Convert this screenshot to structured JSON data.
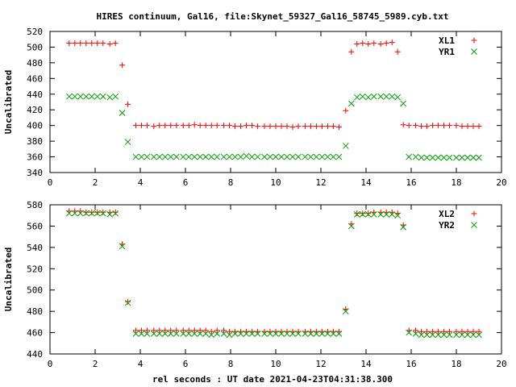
{
  "title": "HIRES continuum, Gal16, file:Skynet_59327_Gal16_58745_5989.cyb.txt",
  "xlabel": "rel seconds : UT date 2021-04-23T04:31:38.300",
  "colors": {
    "red": "#ff0000",
    "green": "#00a000"
  },
  "chart_data": [
    {
      "type": "scatter",
      "ylabel": "Uncalibrated",
      "xlim": [
        0,
        20
      ],
      "ylim": [
        340,
        520
      ],
      "xticks": [
        0,
        2,
        4,
        6,
        8,
        10,
        12,
        14,
        16,
        18,
        20
      ],
      "yticks": [
        340,
        360,
        380,
        400,
        420,
        440,
        460,
        480,
        500,
        520
      ],
      "legend_position": "top-right",
      "series": [
        {
          "name": "XL1",
          "marker": "plus",
          "color": "#ff0000",
          "x": [
            0.85,
            1.1,
            1.35,
            1.6,
            1.85,
            2.1,
            2.35,
            2.65,
            2.9,
            3.2,
            3.45,
            3.8,
            4.05,
            4.3,
            4.6,
            4.85,
            5.1,
            5.35,
            5.6,
            5.9,
            6.15,
            6.4,
            6.65,
            6.9,
            7.15,
            7.4,
            7.7,
            7.95,
            8.2,
            8.45,
            8.7,
            8.95,
            9.2,
            9.5,
            9.75,
            10.0,
            10.25,
            10.5,
            10.75,
            11.0,
            11.3,
            11.55,
            11.8,
            12.05,
            12.3,
            12.55,
            12.8,
            13.1,
            13.35,
            13.6,
            13.85,
            14.1,
            14.35,
            14.65,
            14.9,
            15.15,
            15.4,
            15.65,
            15.9,
            16.2,
            16.45,
            16.7,
            16.95,
            17.2,
            17.45,
            17.7,
            18.0,
            18.25,
            18.5,
            18.75,
            19.0
          ],
          "y": [
            505,
            505,
            505,
            505,
            505,
            505,
            505,
            504,
            505,
            477,
            427,
            400,
            400,
            400,
            399,
            400,
            400,
            400,
            400,
            400,
            400,
            401,
            400,
            400,
            400,
            400,
            400,
            400,
            399,
            399,
            400,
            400,
            399,
            399,
            399,
            399,
            399,
            399,
            398,
            399,
            399,
            399,
            399,
            399,
            399,
            399,
            398,
            419,
            494,
            504,
            505,
            504,
            505,
            504,
            505,
            506,
            494,
            401,
            400,
            400,
            399,
            399,
            400,
            400,
            400,
            400,
            400,
            399,
            399,
            399,
            399
          ]
        },
        {
          "name": "YR1",
          "marker": "cross",
          "color": "#00a000",
          "x": [
            0.85,
            1.1,
            1.35,
            1.6,
            1.85,
            2.1,
            2.35,
            2.65,
            2.9,
            3.2,
            3.45,
            3.8,
            4.05,
            4.3,
            4.6,
            4.85,
            5.1,
            5.35,
            5.6,
            5.9,
            6.15,
            6.4,
            6.65,
            6.9,
            7.15,
            7.4,
            7.7,
            7.95,
            8.2,
            8.45,
            8.7,
            8.95,
            9.2,
            9.5,
            9.75,
            10.0,
            10.25,
            10.5,
            10.75,
            11.0,
            11.3,
            11.55,
            11.8,
            12.05,
            12.3,
            12.55,
            12.8,
            13.1,
            13.35,
            13.6,
            13.85,
            14.1,
            14.35,
            14.65,
            14.9,
            15.15,
            15.4,
            15.65,
            15.9,
            16.2,
            16.45,
            16.7,
            16.95,
            17.2,
            17.45,
            17.7,
            18.0,
            18.25,
            18.5,
            18.75,
            19.0
          ],
          "y": [
            437,
            437,
            437,
            437,
            437,
            437,
            437,
            436,
            437,
            416,
            379,
            360,
            360,
            360,
            360,
            360,
            360,
            360,
            360,
            360,
            360,
            360,
            360,
            360,
            360,
            360,
            360,
            360,
            360,
            360,
            361,
            360,
            360,
            360,
            360,
            360,
            360,
            360,
            360,
            360,
            360,
            360,
            360,
            360,
            360,
            360,
            360,
            374,
            428,
            436,
            437,
            436,
            437,
            437,
            437,
            437,
            436,
            428,
            360,
            360,
            359,
            359,
            359,
            359,
            359,
            359,
            359,
            359,
            359,
            359,
            359
          ]
        }
      ]
    },
    {
      "type": "scatter",
      "ylabel": "Uncalibrated",
      "xlim": [
        0,
        20
      ],
      "ylim": [
        440,
        580
      ],
      "xticks": [
        0,
        2,
        4,
        6,
        8,
        10,
        12,
        14,
        16,
        18,
        20
      ],
      "yticks": [
        440,
        460,
        480,
        500,
        520,
        540,
        560,
        580
      ],
      "legend_position": "top-right",
      "series": [
        {
          "name": "XL2",
          "marker": "plus",
          "color": "#ff0000",
          "x": [
            0.85,
            1.1,
            1.35,
            1.6,
            1.85,
            2.1,
            2.35,
            2.65,
            2.9,
            3.2,
            3.45,
            3.8,
            4.05,
            4.3,
            4.6,
            4.85,
            5.1,
            5.35,
            5.6,
            5.9,
            6.15,
            6.4,
            6.65,
            6.9,
            7.15,
            7.4,
            7.7,
            7.95,
            8.2,
            8.45,
            8.7,
            8.95,
            9.2,
            9.5,
            9.75,
            10.0,
            10.25,
            10.5,
            10.75,
            11.0,
            11.3,
            11.55,
            11.8,
            12.05,
            12.3,
            12.55,
            12.8,
            13.1,
            13.35,
            13.6,
            13.85,
            14.1,
            14.35,
            14.65,
            14.9,
            15.15,
            15.4,
            15.65,
            15.9,
            16.2,
            16.45,
            16.7,
            16.95,
            17.2,
            17.45,
            17.7,
            18.0,
            18.25,
            18.5,
            18.75,
            19.0
          ],
          "y": [
            574,
            574,
            574,
            573,
            573,
            573,
            573,
            573,
            573,
            543,
            489,
            462,
            462,
            462,
            462,
            462,
            462,
            462,
            462,
            462,
            462,
            462,
            462,
            462,
            461,
            462,
            462,
            461,
            461,
            461,
            461,
            461,
            461,
            461,
            461,
            461,
            461,
            461,
            461,
            461,
            461,
            461,
            461,
            461,
            461,
            461,
            461,
            482,
            562,
            572,
            572,
            572,
            573,
            573,
            573,
            573,
            572,
            561,
            462,
            462,
            461,
            461,
            461,
            461,
            461,
            461,
            461,
            461,
            461,
            461,
            461
          ]
        },
        {
          "name": "YR2",
          "marker": "cross",
          "color": "#00a000",
          "x": [
            0.85,
            1.1,
            1.35,
            1.6,
            1.85,
            2.1,
            2.35,
            2.65,
            2.9,
            3.2,
            3.45,
            3.8,
            4.05,
            4.3,
            4.6,
            4.85,
            5.1,
            5.35,
            5.6,
            5.9,
            6.15,
            6.4,
            6.65,
            6.9,
            7.15,
            7.4,
            7.7,
            7.95,
            8.2,
            8.45,
            8.7,
            8.95,
            9.2,
            9.5,
            9.75,
            10.0,
            10.25,
            10.5,
            10.75,
            11.0,
            11.3,
            11.55,
            11.8,
            12.05,
            12.3,
            12.55,
            12.8,
            13.1,
            13.35,
            13.6,
            13.85,
            14.1,
            14.35,
            14.65,
            14.9,
            15.15,
            15.4,
            15.65,
            15.9,
            16.2,
            16.45,
            16.7,
            16.95,
            17.2,
            17.45,
            17.7,
            18.0,
            18.25,
            18.5,
            18.75,
            19.0
          ],
          "y": [
            572,
            572,
            572,
            572,
            572,
            572,
            572,
            571,
            572,
            541,
            488,
            459,
            459,
            459,
            459,
            459,
            459,
            459,
            459,
            459,
            459,
            459,
            459,
            459,
            458,
            459,
            459,
            458,
            459,
            459,
            459,
            459,
            459,
            459,
            459,
            459,
            459,
            459,
            459,
            459,
            459,
            459,
            459,
            459,
            459,
            459,
            459,
            480,
            560,
            571,
            571,
            571,
            571,
            571,
            571,
            571,
            570,
            559,
            460,
            459,
            458,
            458,
            458,
            458,
            458,
            458,
            458,
            458,
            458,
            458,
            458
          ]
        }
      ]
    }
  ]
}
